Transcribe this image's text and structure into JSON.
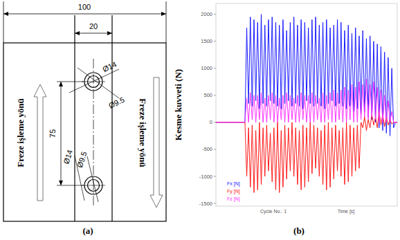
{
  "panel_labels": [
    "(a)",
    "(b)"
  ],
  "diagram": {
    "dimension_labels": [
      "100",
      "20",
      "75",
      "Ø14",
      "Ø9.5",
      "Ø14",
      "Ø9.5"
    ],
    "direction_labels": [
      "Freze işleme yönü",
      "Freze işleme yönü"
    ]
  },
  "chart_data": {
    "type": "line",
    "y_label": "Kesme kuvveti (N)",
    "annotations": [
      "Cycle No.: 1",
      "Time [s]"
    ],
    "xlim": [
      0,
      100
    ],
    "ylim": [
      -1550,
      2200
    ],
    "yticks": [
      -1500,
      -1000,
      -500,
      0,
      500,
      1000,
      1500,
      2000
    ],
    "tick_labels": "y",
    "legend": "lower left",
    "grid": false,
    "x": [
      0,
      1,
      2,
      3,
      4,
      5,
      6,
      7,
      8,
      9,
      10,
      11,
      12,
      13,
      14,
      15,
      16,
      17,
      18,
      19,
      20,
      21,
      22,
      23,
      24,
      25,
      26,
      27,
      28,
      29,
      30,
      31,
      32,
      33,
      34,
      35,
      36,
      37,
      38,
      39,
      40,
      41,
      42,
      43,
      44,
      45,
      46,
      47,
      48,
      49,
      50,
      51,
      52,
      53,
      54,
      55,
      56,
      57,
      58,
      59,
      60,
      61,
      62,
      63,
      64,
      65,
      66,
      67,
      68,
      69,
      70,
      71,
      72,
      73,
      74,
      75,
      76,
      77,
      78,
      79,
      80,
      81,
      82,
      83,
      84,
      85,
      86,
      87,
      88,
      89,
      90,
      91,
      92,
      93,
      94,
      95,
      96,
      97,
      98,
      99,
      100
    ],
    "series": [
      {
        "name": "Fx [N]",
        "color": "#1a1aff",
        "values": [
          0,
          0,
          0,
          0,
          0,
          0,
          0,
          0,
          0,
          0,
          0,
          0,
          0,
          0,
          0,
          0,
          0,
          1750,
          350,
          1950,
          300,
          1900,
          400,
          1850,
          250,
          2000,
          350,
          1800,
          300,
          1900,
          400,
          1950,
          350,
          1850,
          300,
          1800,
          250,
          1900,
          350,
          1700,
          400,
          1850,
          300,
          1950,
          350,
          1800,
          300,
          1900,
          250,
          1850,
          400,
          1750,
          350,
          1900,
          300,
          1950,
          350,
          1800,
          300,
          1850,
          250,
          1900,
          350,
          1750,
          400,
          1800,
          300,
          1900,
          350,
          1850,
          300,
          1700,
          250,
          1800,
          300,
          1650,
          200,
          1750,
          250,
          1600,
          150,
          1700,
          200,
          1550,
          100,
          1600,
          50,
          1500,
          0,
          1450,
          -100,
          1400,
          -150,
          1300,
          -200,
          1200,
          -250,
          1000,
          -100,
          0,
          0
        ]
      },
      {
        "name": "Fy [N]",
        "color": "#ff1a1a",
        "values": [
          0,
          0,
          0,
          0,
          0,
          0,
          0,
          0,
          0,
          0,
          0,
          0,
          0,
          0,
          0,
          0,
          0,
          -1000,
          -100,
          -1200,
          -50,
          -1300,
          -150,
          -1250,
          0,
          -1150,
          -100,
          -1000,
          -50,
          -900,
          -200,
          -1100,
          -100,
          -1250,
          0,
          -1300,
          -150,
          -1200,
          -50,
          -1050,
          -100,
          -900,
          0,
          -1000,
          -100,
          -1150,
          -150,
          -1250,
          -50,
          -1200,
          -100,
          -1100,
          0,
          -950,
          -50,
          -850,
          -100,
          -1000,
          -150,
          -1150,
          -50,
          -1250,
          0,
          -1200,
          -100,
          -1050,
          -50,
          -900,
          -150,
          -1000,
          -100,
          -1150,
          0,
          -1100,
          -50,
          -1000,
          -100,
          -900,
          -50,
          -850,
          0,
          -100,
          100,
          -150,
          50,
          -100,
          150,
          -50,
          100,
          -100,
          200,
          -50,
          150,
          -80,
          100,
          -50,
          50,
          -30,
          0,
          0,
          0
        ]
      },
      {
        "name": "Fz [N]",
        "color": "#ff33ff",
        "values": [
          0,
          0,
          0,
          0,
          0,
          0,
          0,
          0,
          0,
          0,
          0,
          0,
          0,
          0,
          0,
          0,
          0,
          450,
          0,
          550,
          50,
          500,
          0,
          500,
          50,
          550,
          0,
          450,
          0,
          500,
          50,
          550,
          0,
          500,
          0,
          450,
          50,
          500,
          0,
          550,
          0,
          500,
          50,
          450,
          0,
          500,
          0,
          550,
          50,
          500,
          0,
          500,
          0,
          550,
          0,
          500,
          50,
          450,
          0,
          550,
          0,
          500,
          50,
          550,
          0,
          600,
          0,
          550,
          50,
          600,
          0,
          650,
          0,
          600,
          50,
          700,
          0,
          650,
          0,
          750,
          50,
          700,
          100,
          800,
          50,
          700,
          100,
          750,
          50,
          650,
          0,
          600,
          0,
          500,
          0,
          400,
          0,
          200,
          0,
          0,
          0
        ]
      }
    ]
  }
}
